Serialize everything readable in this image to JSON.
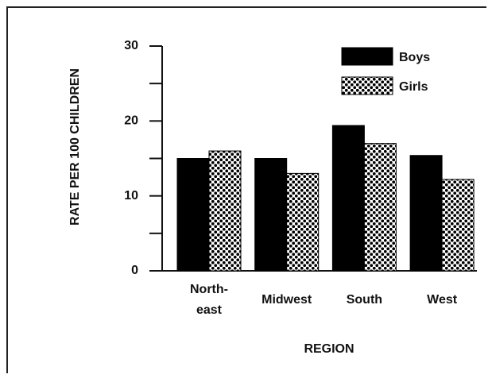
{
  "chart_data": {
    "type": "bar",
    "categories": [
      "North-\neast",
      "Midwest",
      "South",
      "West"
    ],
    "series": [
      {
        "name": "Boys",
        "color": "#000000",
        "values": [
          15,
          15,
          19.4,
          15.4
        ]
      },
      {
        "name": "Girls",
        "color": "#000000",
        "pattern": "dotted",
        "values": [
          16,
          13,
          17,
          12.2
        ]
      }
    ],
    "ylim": [
      0,
      30
    ],
    "yticks": [
      0,
      10,
      20,
      30
    ],
    "minor_yticks": [
      5,
      15,
      25
    ],
    "ylabel": "RATE PER 100 CHILDREN",
    "xlabel": "REGION",
    "legend": "upper right"
  }
}
